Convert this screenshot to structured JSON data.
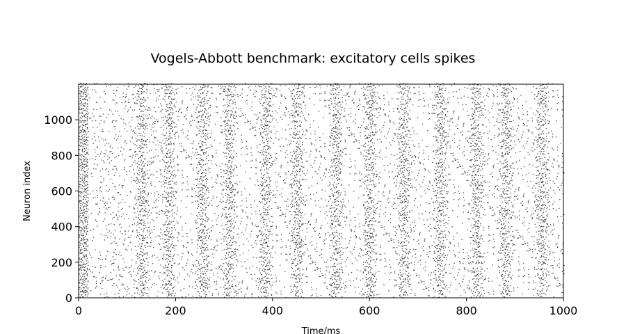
{
  "chart_data": {
    "type": "scatter",
    "title": "Vogels-Abbott benchmark: excitatory cells spikes",
    "xlabel": "Time/ms",
    "ylabel": "Neuron index",
    "xlim": [
      0,
      1000
    ],
    "ylim": [
      0,
      1200
    ],
    "x_ticks": [
      0,
      200,
      400,
      600,
      800,
      1000
    ],
    "y_ticks": [
      0,
      200,
      400,
      600,
      800,
      1000
    ],
    "grid": false,
    "marker_color": "#000000",
    "series": [
      {
        "name": "",
        "description_values": {
          "neuron_count": 1200,
          "duration_ms": 1000,
          "initial_burst_ms": [
            0,
            20
          ],
          "quiet_gap_ms": [
            20,
            50
          ],
          "population_burst_times_ms": [
            130,
            185,
            255,
            310,
            385,
            450,
            530,
            600,
            670,
            745,
            820,
            880,
            955
          ]
        }
      }
    ]
  }
}
